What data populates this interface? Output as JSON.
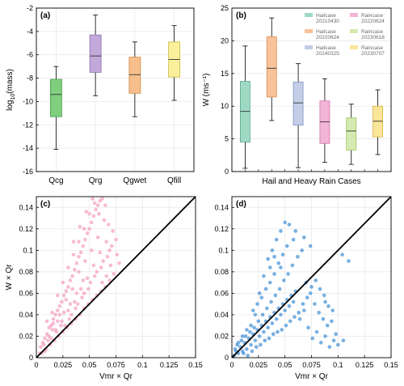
{
  "colors": {
    "scatter_c": "#f39ec0",
    "scatter_d": "#3f8fd6",
    "diagonal": "#000000",
    "grid": "#e6e6e6"
  },
  "chart_data": [
    {
      "panel": "(a)",
      "type": "box",
      "categories": [
        "Qcg",
        "Qrg",
        "Qgwet",
        "Qfill"
      ],
      "ylabel": "log10(mass)",
      "ylabel_main": "log",
      "ylabel_sub": "10",
      "ylabel_tail": "(mass)",
      "ylim": [
        -16,
        -2
      ],
      "yticks": [
        -16,
        -14,
        -12,
        -10,
        -8,
        -6,
        -4,
        -2
      ],
      "grid": true,
      "boxes": [
        {
          "name": "Qcg",
          "whisker_low": -14.1,
          "q1": -11.3,
          "median": -9.4,
          "q3": -8.1,
          "whisker_high": -7.0,
          "fill": "#7fcf7f",
          "edge": "#4a9a4a"
        },
        {
          "name": "Qrg",
          "whisker_low": -9.5,
          "q1": -7.5,
          "median": -6.1,
          "q3": -4.3,
          "whisker_high": -2.6,
          "fill": "#c2a9d9",
          "edge": "#8c6fae"
        },
        {
          "name": "Qgwet",
          "whisker_low": -11.3,
          "q1": -9.3,
          "median": -7.7,
          "q3": -6.2,
          "whisker_high": -4.9,
          "fill": "#f7bf8c",
          "edge": "#d08a4a"
        },
        {
          "name": "Qfill",
          "whisker_low": -9.9,
          "q1": -7.9,
          "median": -6.4,
          "q3": -4.9,
          "whisker_high": -3.5,
          "fill": "#faf09b",
          "edge": "#c8b83c"
        }
      ]
    },
    {
      "panel": "(b)",
      "type": "box",
      "xlabel": "Hail and Heavy Rain Cases",
      "ylabel": "W (ms⁻¹)",
      "ylim": [
        0,
        25
      ],
      "yticks": [
        0,
        5,
        10,
        15,
        20,
        25
      ],
      "grid": true,
      "legend_position": "top-right",
      "boxes": [
        {
          "name": "Hailcase 20210430",
          "line1": "Hailcase",
          "line2": "20210430",
          "whisker_low": 0.5,
          "q1": 4.5,
          "median": 9.2,
          "q3": 13.8,
          "whisker_high": 19.2,
          "fill": "#9fd9c4",
          "edge": "#5aa98b"
        },
        {
          "name": "Hailcase 20220624",
          "line1": "Hailcase",
          "line2": "20220624",
          "whisker_low": 7.8,
          "q1": 11.4,
          "median": 15.8,
          "q3": 20.6,
          "whisker_high": 23.5,
          "fill": "#f8c29a",
          "edge": "#d98c52"
        },
        {
          "name": "Hailcase 20240325",
          "line1": "Hailcase",
          "line2": "20240325",
          "whisker_low": 0.6,
          "q1": 7.1,
          "median": 10.5,
          "q3": 13.7,
          "whisker_high": 16.5,
          "fill": "#c3cde6",
          "edge": "#7f93c4"
        },
        {
          "name": "Raincase 20220624",
          "line1": "Raincase",
          "line2": "20220624",
          "whisker_low": 1.4,
          "q1": 4.3,
          "median": 7.6,
          "q3": 10.8,
          "whisker_high": 14.2,
          "fill": "#f2b4d7",
          "edge": "#cf74a9"
        },
        {
          "name": "Raincase 20230618",
          "line1": "Raincase",
          "line2": "20230618",
          "whisker_low": 1.1,
          "q1": 3.3,
          "median": 6.2,
          "q3": 8.2,
          "whisker_high": 10.3,
          "fill": "#d5eab0",
          "edge": "#9cc25e"
        },
        {
          "name": "Raincase 20230707",
          "line1": "Raincase",
          "line2": "20230707",
          "whisker_low": 2.6,
          "q1": 5.3,
          "median": 7.7,
          "q3": 10.0,
          "whisker_high": 12.5,
          "fill": "#fbe59a",
          "edge": "#d2b43d"
        }
      ]
    },
    {
      "panel": "(c)",
      "type": "scatter",
      "xlabel": "Vmr  × Qr",
      "ylabel": "W   × Qr",
      "xlim": [
        0,
        0.15
      ],
      "ylim": [
        0,
        0.15
      ],
      "xticks": [
        0,
        0.025,
        0.05,
        0.075,
        0.1,
        0.125,
        0.15
      ],
      "yticks": [
        0,
        0.02,
        0.04,
        0.06,
        0.08,
        0.1,
        0.12,
        0.14
      ],
      "xtick_labels": [
        "0",
        "0.025",
        "0.05",
        "0.075",
        "0.1",
        "0.125",
        "0.15"
      ],
      "ytick_labels": [
        "0",
        "0.02",
        "0.04",
        "0.06",
        "0.08",
        "0.1",
        "0.12",
        "0.14"
      ],
      "grid": true,
      "diagonal": [
        [
          0,
          0
        ],
        [
          0.15,
          0.15
        ]
      ],
      "points": [
        [
          0.004,
          0.01
        ],
        [
          0.006,
          0.014
        ],
        [
          0.008,
          0.018
        ],
        [
          0.01,
          0.022
        ],
        [
          0.012,
          0.028
        ],
        [
          0.014,
          0.03
        ],
        [
          0.016,
          0.036
        ],
        [
          0.018,
          0.04
        ],
        [
          0.02,
          0.044
        ],
        [
          0.022,
          0.048
        ],
        [
          0.024,
          0.052
        ],
        [
          0.026,
          0.058
        ],
        [
          0.028,
          0.062
        ],
        [
          0.03,
          0.066
        ],
        [
          0.032,
          0.072
        ],
        [
          0.034,
          0.076
        ],
        [
          0.036,
          0.082
        ],
        [
          0.038,
          0.088
        ],
        [
          0.04,
          0.094
        ],
        [
          0.042,
          0.098
        ],
        [
          0.044,
          0.104
        ],
        [
          0.046,
          0.11
        ],
        [
          0.048,
          0.116
        ],
        [
          0.05,
          0.12
        ],
        [
          0.052,
          0.126
        ],
        [
          0.054,
          0.132
        ],
        [
          0.056,
          0.138
        ],
        [
          0.058,
          0.142
        ],
        [
          0.06,
          0.146
        ],
        [
          0.062,
          0.148
        ],
        [
          0.005,
          0.004
        ],
        [
          0.009,
          0.008
        ],
        [
          0.013,
          0.012
        ],
        [
          0.017,
          0.016
        ],
        [
          0.021,
          0.02
        ],
        [
          0.025,
          0.024
        ],
        [
          0.029,
          0.028
        ],
        [
          0.033,
          0.032
        ],
        [
          0.037,
          0.036
        ],
        [
          0.041,
          0.04
        ],
        [
          0.045,
          0.046
        ],
        [
          0.049,
          0.05
        ],
        [
          0.053,
          0.054
        ],
        [
          0.057,
          0.058
        ],
        [
          0.061,
          0.062
        ],
        [
          0.065,
          0.066
        ],
        [
          0.069,
          0.072
        ],
        [
          0.073,
          0.078
        ],
        [
          0.01,
          0.034
        ],
        [
          0.015,
          0.042
        ],
        [
          0.02,
          0.058
        ],
        [
          0.025,
          0.07
        ],
        [
          0.03,
          0.084
        ],
        [
          0.035,
          0.096
        ],
        [
          0.04,
          0.108
        ],
        [
          0.045,
          0.12
        ],
        [
          0.05,
          0.134
        ],
        [
          0.055,
          0.144
        ],
        [
          0.012,
          0.02
        ],
        [
          0.018,
          0.026
        ],
        [
          0.024,
          0.034
        ],
        [
          0.03,
          0.044
        ],
        [
          0.036,
          0.052
        ],
        [
          0.042,
          0.064
        ],
        [
          0.048,
          0.074
        ],
        [
          0.054,
          0.086
        ],
        [
          0.06,
          0.098
        ],
        [
          0.066,
          0.108
        ],
        [
          0.072,
          0.118
        ],
        [
          0.064,
          0.128
        ],
        [
          0.058,
          0.112
        ],
        [
          0.052,
          0.1
        ],
        [
          0.046,
          0.09
        ],
        [
          0.04,
          0.08
        ],
        [
          0.034,
          0.064
        ],
        [
          0.028,
          0.054
        ],
        [
          0.022,
          0.04
        ],
        [
          0.016,
          0.032
        ],
        [
          0.027,
          0.03
        ],
        [
          0.033,
          0.04
        ],
        [
          0.039,
          0.05
        ],
        [
          0.045,
          0.06
        ],
        [
          0.051,
          0.07
        ],
        [
          0.057,
          0.08
        ],
        [
          0.063,
          0.09
        ],
        [
          0.069,
          0.1
        ],
        [
          0.075,
          0.11
        ],
        [
          0.07,
          0.086
        ],
        [
          0.066,
          0.076
        ],
        [
          0.062,
          0.07
        ],
        [
          0.008,
          0.006
        ],
        [
          0.014,
          0.018
        ],
        [
          0.019,
          0.024
        ],
        [
          0.023,
          0.03
        ],
        [
          0.031,
          0.036
        ],
        [
          0.037,
          0.046
        ],
        [
          0.043,
          0.056
        ],
        [
          0.049,
          0.064
        ],
        [
          0.055,
          0.076
        ],
        [
          0.061,
          0.084
        ],
        [
          0.067,
          0.094
        ],
        [
          0.071,
          0.104
        ],
        [
          0.044,
          0.072
        ],
        [
          0.038,
          0.06
        ],
        [
          0.032,
          0.05
        ],
        [
          0.026,
          0.042
        ],
        [
          0.02,
          0.034
        ],
        [
          0.015,
          0.026
        ],
        [
          0.011,
          0.016
        ],
        [
          0.007,
          0.012
        ],
        [
          0.003,
          0.004
        ],
        [
          0.035,
          0.108
        ],
        [
          0.041,
          0.122
        ],
        [
          0.047,
          0.136
        ],
        [
          0.053,
          0.148
        ],
        [
          0.059,
          0.134
        ],
        [
          0.065,
          0.142
        ],
        [
          0.068,
          0.124
        ],
        [
          0.076,
          0.096
        ],
        [
          0.078,
          0.088
        ]
      ]
    },
    {
      "panel": "(d)",
      "type": "scatter",
      "xlabel": "Vmr  × Qr",
      "xlim": [
        0,
        0.15
      ],
      "ylim": [
        0,
        0.15
      ],
      "xticks": [
        0,
        0.025,
        0.05,
        0.075,
        0.1,
        0.125,
        0.15
      ],
      "yticks": [
        0,
        0.02,
        0.04,
        0.06,
        0.08,
        0.1,
        0.12,
        0.14
      ],
      "xtick_labels": [
        "0",
        "0.025",
        "0.05",
        "0.075",
        "0.1",
        "0.125",
        "0.15"
      ],
      "ytick_labels": [
        "0",
        "0.02",
        "0.04",
        "0.06",
        "0.08",
        "0.1",
        "0.12",
        "0.14"
      ],
      "grid": true,
      "diagonal": [
        [
          0,
          0
        ],
        [
          0.15,
          0.15
        ]
      ],
      "points": [
        [
          0.002,
          0.002
        ],
        [
          0.004,
          0.006
        ],
        [
          0.006,
          0.004
        ],
        [
          0.008,
          0.01
        ],
        [
          0.01,
          0.006
        ],
        [
          0.012,
          0.014
        ],
        [
          0.014,
          0.008
        ],
        [
          0.016,
          0.018
        ],
        [
          0.018,
          0.012
        ],
        [
          0.02,
          0.022
        ],
        [
          0.022,
          0.016
        ],
        [
          0.024,
          0.026
        ],
        [
          0.026,
          0.02
        ],
        [
          0.028,
          0.03
        ],
        [
          0.03,
          0.024
        ],
        [
          0.032,
          0.034
        ],
        [
          0.034,
          0.028
        ],
        [
          0.036,
          0.038
        ],
        [
          0.038,
          0.032
        ],
        [
          0.04,
          0.042
        ],
        [
          0.042,
          0.036
        ],
        [
          0.044,
          0.046
        ],
        [
          0.046,
          0.04
        ],
        [
          0.048,
          0.05
        ],
        [
          0.05,
          0.044
        ],
        [
          0.052,
          0.054
        ],
        [
          0.054,
          0.048
        ],
        [
          0.056,
          0.058
        ],
        [
          0.058,
          0.052
        ],
        [
          0.06,
          0.062
        ],
        [
          0.005,
          0.012
        ],
        [
          0.009,
          0.016
        ],
        [
          0.013,
          0.02
        ],
        [
          0.017,
          0.024
        ],
        [
          0.021,
          0.028
        ],
        [
          0.025,
          0.034
        ],
        [
          0.029,
          0.04
        ],
        [
          0.033,
          0.046
        ],
        [
          0.037,
          0.052
        ],
        [
          0.041,
          0.058
        ],
        [
          0.045,
          0.064
        ],
        [
          0.049,
          0.072
        ],
        [
          0.053,
          0.078
        ],
        [
          0.057,
          0.086
        ],
        [
          0.02,
          0.044
        ],
        [
          0.024,
          0.05
        ],
        [
          0.028,
          0.056
        ],
        [
          0.032,
          0.064
        ],
        [
          0.036,
          0.07
        ],
        [
          0.04,
          0.078
        ],
        [
          0.044,
          0.088
        ],
        [
          0.048,
          0.096
        ],
        [
          0.052,
          0.104
        ],
        [
          0.03,
          0.076
        ],
        [
          0.034,
          0.092
        ],
        [
          0.038,
          0.1
        ],
        [
          0.042,
          0.11
        ],
        [
          0.046,
          0.118
        ],
        [
          0.05,
          0.126
        ],
        [
          0.058,
          0.11
        ],
        [
          0.062,
          0.094
        ],
        [
          0.066,
          0.1
        ],
        [
          0.07,
          0.07
        ],
        [
          0.074,
          0.06
        ],
        [
          0.078,
          0.05
        ],
        [
          0.082,
          0.042
        ],
        [
          0.086,
          0.036
        ],
        [
          0.09,
          0.03
        ],
        [
          0.094,
          0.034
        ],
        [
          0.098,
          0.022
        ],
        [
          0.064,
          0.036
        ],
        [
          0.068,
          0.044
        ],
        [
          0.072,
          0.028
        ],
        [
          0.076,
          0.018
        ],
        [
          0.08,
          0.024
        ],
        [
          0.084,
          0.014
        ],
        [
          0.088,
          0.02
        ],
        [
          0.092,
          0.01
        ],
        [
          0.096,
          0.016
        ],
        [
          0.1,
          0.012
        ],
        [
          0.105,
          0.016
        ],
        [
          0.11,
          0.09
        ],
        [
          0.104,
          0.096
        ],
        [
          0.068,
          0.112
        ],
        [
          0.074,
          0.104
        ],
        [
          0.06,
          0.118
        ],
        [
          0.054,
          0.124
        ],
        [
          0.026,
          0.06
        ],
        [
          0.022,
          0.04
        ],
        [
          0.018,
          0.03
        ],
        [
          0.014,
          0.026
        ],
        [
          0.01,
          0.02
        ],
        [
          0.006,
          0.014
        ],
        [
          0.003,
          0.008
        ],
        [
          0.011,
          0.004
        ],
        [
          0.015,
          0.002
        ],
        [
          0.019,
          0.006
        ],
        [
          0.023,
          0.01
        ],
        [
          0.027,
          0.012
        ],
        [
          0.031,
          0.016
        ],
        [
          0.035,
          0.018
        ],
        [
          0.039,
          0.022
        ],
        [
          0.043,
          0.024
        ],
        [
          0.047,
          0.026
        ],
        [
          0.051,
          0.03
        ],
        [
          0.055,
          0.034
        ],
        [
          0.059,
          0.038
        ],
        [
          0.063,
          0.042
        ],
        [
          0.067,
          0.05
        ],
        [
          0.071,
          0.056
        ],
        [
          0.075,
          0.066
        ],
        [
          0.079,
          0.072
        ],
        [
          0.083,
          0.064
        ],
        [
          0.087,
          0.058
        ],
        [
          0.091,
          0.048
        ],
        [
          0.095,
          0.044
        ],
        [
          0.088,
          0.052
        ],
        [
          0.046,
          0.084
        ],
        [
          0.04,
          0.094
        ],
        [
          0.036,
          0.084
        ]
      ]
    }
  ]
}
